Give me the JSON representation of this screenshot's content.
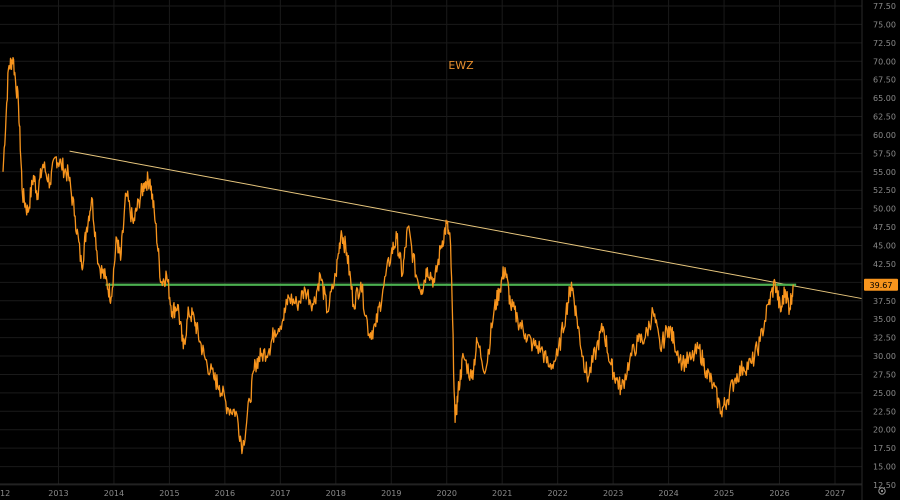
{
  "chart_data": {
    "type": "line",
    "title": "EWZ",
    "y_axis_side": "right",
    "grid": true,
    "ylim": [
      12.5,
      77.5
    ],
    "xlim": [
      2012.0,
      2027.5
    ],
    "y_ticks": [
      "12.50",
      "15.00",
      "17.50",
      "20.00",
      "22.50",
      "25.00",
      "27.50",
      "30.00",
      "32.50",
      "35.00",
      "37.50",
      "40.00",
      "42.50",
      "45.00",
      "47.50",
      "50.00",
      "52.50",
      "55.00",
      "57.50",
      "60.00",
      "62.50",
      "65.00",
      "67.50",
      "70.00",
      "72.50",
      "75.00",
      "77.50"
    ],
    "x_ticks": [
      "12",
      "2013",
      "2014",
      "2015",
      "2016",
      "2017",
      "2018",
      "2019",
      "2020",
      "2021",
      "2022",
      "2023",
      "2024",
      "2025",
      "2026",
      "2027"
    ],
    "last_price_label": "39.67",
    "series": [
      {
        "color": "#f7941d",
        "x": [
          2012.0,
          2012.1,
          2012.18,
          2012.28,
          2012.35,
          2012.45,
          2012.55,
          2012.62,
          2012.72,
          2012.85,
          2012.95,
          2013.05,
          2013.18,
          2013.3,
          2013.42,
          2013.5,
          2013.6,
          2013.72,
          2013.85,
          2013.95,
          2014.05,
          2014.12,
          2014.22,
          2014.35,
          2014.45,
          2014.55,
          2014.65,
          2014.75,
          2014.85,
          2014.95,
          2015.05,
          2015.15,
          2015.25,
          2015.35,
          2015.45,
          2015.55,
          2015.65,
          2015.8,
          2015.9,
          2016.05,
          2016.2,
          2016.32,
          2016.45,
          2016.55,
          2016.65,
          2016.8,
          2016.9,
          2017.05,
          2017.15,
          2017.3,
          2017.45,
          2017.6,
          2017.72,
          2017.85,
          2018.0,
          2018.1,
          2018.2,
          2018.32,
          2018.45,
          2018.6,
          2018.72,
          2018.85,
          2019.0,
          2019.1,
          2019.2,
          2019.3,
          2019.45,
          2019.55,
          2019.65,
          2019.78,
          2019.9,
          2020.0,
          2020.07,
          2020.15,
          2020.22,
          2020.3,
          2020.45,
          2020.55,
          2020.7,
          2020.85,
          2020.95,
          2021.05,
          2021.15,
          2021.28,
          2021.42,
          2021.55,
          2021.7,
          2021.85,
          2022.0,
          2022.15,
          2022.25,
          2022.35,
          2022.45,
          2022.55,
          2022.7,
          2022.82,
          2022.95,
          2023.05,
          2023.15,
          2023.3,
          2023.45,
          2023.58,
          2023.72,
          2023.85,
          2024.0,
          2024.1,
          2024.25,
          2024.4,
          2024.55,
          2024.68,
          2024.8,
          2024.95,
          2025.05,
          2025.2,
          2025.35,
          2025.5,
          2025.65,
          2025.8,
          2025.92,
          2026.02,
          2026.1,
          2026.18,
          2026.25
        ],
        "y": [
          55.0,
          69.0,
          70.5,
          64.0,
          52.0,
          49.5,
          54.5,
          52.0,
          56.0,
          53.5,
          57.0,
          56.0,
          54.5,
          49.0,
          42.0,
          47.0,
          51.5,
          42.5,
          40.5,
          38.0,
          46.0,
          43.0,
          52.0,
          48.0,
          51.0,
          53.5,
          54.0,
          48.0,
          40.0,
          41.0,
          36.0,
          37.0,
          31.0,
          36.0,
          35.0,
          32.0,
          29.5,
          27.0,
          26.0,
          23.0,
          22.5,
          17.5,
          24.0,
          29.0,
          30.0,
          31.0,
          33.5,
          35.0,
          38.0,
          37.0,
          39.0,
          37.0,
          41.0,
          36.0,
          41.0,
          47.0,
          44.0,
          37.0,
          40.0,
          33.0,
          34.0,
          39.0,
          44.0,
          46.0,
          41.0,
          47.5,
          41.0,
          39.0,
          42.0,
          40.0,
          45.0,
          48.0,
          45.0,
          21.0,
          26.0,
          30.0,
          27.0,
          32.0,
          28.0,
          36.0,
          39.0,
          42.0,
          37.0,
          35.0,
          33.0,
          31.5,
          31.0,
          28.5,
          30.0,
          36.0,
          40.0,
          35.0,
          30.0,
          27.0,
          31.0,
          34.0,
          29.0,
          27.0,
          25.5,
          29.5,
          32.0,
          32.5,
          36.0,
          31.0,
          34.0,
          32.0,
          29.0,
          29.5,
          31.0,
          28.0,
          26.0,
          22.5,
          24.0,
          27.0,
          28.5,
          29.0,
          32.0,
          37.0,
          40.0,
          36.0,
          39.0,
          36.5,
          39.7
        ]
      }
    ],
    "lines": [
      {
        "type": "trendline",
        "color": "#e8c77e",
        "x1": 2013.2,
        "y1": 57.8,
        "x2": 2027.5,
        "y2": 37.8
      },
      {
        "type": "horizontal",
        "color": "#4caf50",
        "y": 39.67,
        "x1": 2013.85,
        "x2": 2026.3
      }
    ]
  },
  "colors": {
    "background": "#000000",
    "price_line": "#f7941d",
    "trendline": "#e8c77e",
    "support": "#4caf50",
    "axis_text": "#8a8a8a"
  },
  "bottom_right_icon": "settings-gear-icon"
}
